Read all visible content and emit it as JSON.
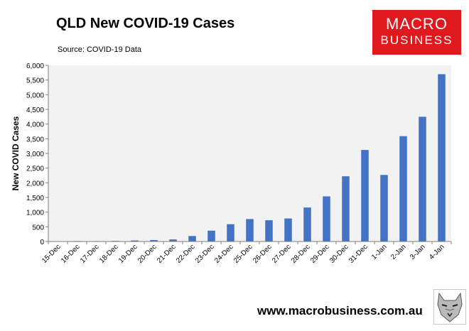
{
  "header": {
    "title": "QLD New COVID-19 Cases",
    "source": "Source: COVID-19 Data"
  },
  "logo": {
    "line1": "MACRO",
    "line2": "BUSINESS"
  },
  "footer": {
    "url": "www.macrobusiness.com.au",
    "mascot_icon": "wolf-icon"
  },
  "colors": {
    "bar": "#4472c4",
    "plot_bg": "#f2f2f2",
    "logo_bg": "#e0191f"
  },
  "chart_data": {
    "type": "bar",
    "title": "QLD New COVID-19 Cases",
    "xlabel": "",
    "ylabel": "New COVID Cases",
    "categories": [
      "15-Dec",
      "16-Dec",
      "17-Dec",
      "18-Dec",
      "19-Dec",
      "20-Dec",
      "21-Dec",
      "22-Dec",
      "23-Dec",
      "24-Dec",
      "25-Dec",
      "26-Dec",
      "27-Dec",
      "28-Dec",
      "29-Dec",
      "30-Dec",
      "31-Dec",
      "1-Jan",
      "2-Jan",
      "3-Jan",
      "4-Jan"
    ],
    "values": [
      2,
      16,
      15,
      20,
      35,
      50,
      70,
      186,
      369,
      589,
      765,
      724,
      784,
      1158,
      1538,
      2222,
      3118,
      2266,
      3587,
      4249,
      5699
    ],
    "ylim": [
      0,
      6000
    ],
    "yticks": [
      0,
      500,
      1000,
      1500,
      2000,
      2500,
      3000,
      3500,
      4000,
      4500,
      5000,
      5500,
      6000
    ],
    "ytick_labels": [
      "0",
      "500",
      "1,000",
      "1,500",
      "2,000",
      "2,500",
      "3,000",
      "3,500",
      "4,000",
      "4,500",
      "5,000",
      "5,500",
      "6,000"
    ],
    "grid": false,
    "legend": "none"
  }
}
